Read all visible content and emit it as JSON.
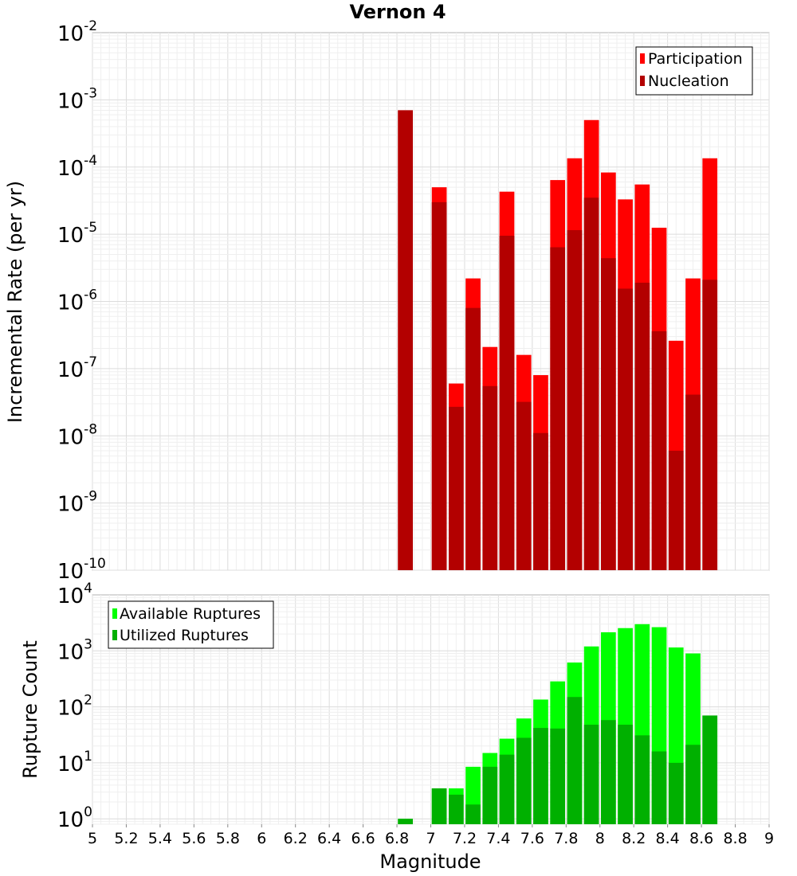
{
  "chart_data": [
    {
      "type": "bar",
      "title": "Vernon 4",
      "xlabel": "",
      "ylabel": "Incremental Rate (per yr)",
      "yscale": "log",
      "ylim": [
        1e-10,
        0.01
      ],
      "xlim": [
        5,
        9
      ],
      "grid": true,
      "legend": "top-right",
      "x": [
        6.85,
        7.05,
        7.15,
        7.25,
        7.35,
        7.45,
        7.55,
        7.65,
        7.75,
        7.85,
        7.95,
        8.05,
        8.15,
        8.25,
        8.35,
        8.45,
        8.55,
        8.65
      ],
      "series": [
        {
          "name": "Participation",
          "color": "#ff0000",
          "values": [
            0.0007,
            5e-05,
            6e-08,
            2.2e-06,
            2.1e-07,
            4.3e-05,
            1.6e-07,
            8e-08,
            6.4e-05,
            0.000135,
            0.0005,
            8.3e-05,
            3.3e-05,
            5.5e-05,
            1.25e-05,
            2.6e-07,
            2.2e-06,
            0.000135
          ]
        },
        {
          "name": "Nucleation",
          "color": "#b30000",
          "values": [
            0.0007,
            3e-05,
            2.7e-08,
            8e-07,
            5.5e-08,
            9.5e-06,
            3.2e-08,
            1.1e-08,
            6.4e-06,
            1.15e-05,
            3.5e-05,
            4.4e-06,
            1.55e-06,
            1.9e-06,
            3.6e-07,
            6e-09,
            4.1e-08,
            2.1e-06
          ]
        }
      ]
    },
    {
      "type": "bar",
      "title": "",
      "xlabel": "Magnitude",
      "ylabel": "Rupture Count",
      "yscale": "log",
      "ylim": [
        0.8,
        10000
      ],
      "xlim": [
        5,
        9
      ],
      "grid": true,
      "legend": "top-left",
      "x": [
        6.85,
        7.05,
        7.15,
        7.25,
        7.35,
        7.45,
        7.55,
        7.65,
        7.75,
        7.85,
        7.95,
        8.05,
        8.15,
        8.25,
        8.35,
        8.45,
        8.55,
        8.65
      ],
      "series": [
        {
          "name": "Available Ruptures",
          "color": "#00ff00",
          "values": [
            1,
            3.5,
            3.5,
            8.5,
            15,
            27,
            62,
            135,
            285,
            620,
            1200,
            2150,
            2550,
            3000,
            2650,
            1150,
            900,
            70
          ]
        },
        {
          "name": "Utilized Ruptures",
          "color": "#00b000",
          "values": [
            1,
            3.5,
            2.7,
            1.8,
            8.5,
            14,
            28,
            42,
            41,
            150,
            48,
            58,
            48,
            31,
            16,
            10,
            21,
            70
          ]
        }
      ]
    }
  ],
  "xticks": [
    "5",
    "5.2",
    "5.4",
    "5.6",
    "5.8",
    "6",
    "6.2",
    "6.4",
    "6.6",
    "6.8",
    "7",
    "7.2",
    "7.4",
    "7.6",
    "7.8",
    "8",
    "8.2",
    "8.4",
    "8.6",
    "8.8",
    "9"
  ],
  "top_yticks": [
    {
      "base": "10",
      "exp": "-2"
    },
    {
      "base": "10",
      "exp": "-3"
    },
    {
      "base": "10",
      "exp": "-4"
    },
    {
      "base": "10",
      "exp": "-5"
    },
    {
      "base": "10",
      "exp": "-6"
    },
    {
      "base": "10",
      "exp": "-7"
    },
    {
      "base": "10",
      "exp": "-8"
    },
    {
      "base": "10",
      "exp": "-9"
    },
    {
      "base": "10",
      "exp": "-10"
    }
  ],
  "bottom_yticks": [
    {
      "base": "10",
      "exp": "4"
    },
    {
      "base": "10",
      "exp": "3"
    },
    {
      "base": "10",
      "exp": "2"
    },
    {
      "base": "10",
      "exp": "1"
    },
    {
      "base": "10",
      "exp": "0"
    }
  ]
}
